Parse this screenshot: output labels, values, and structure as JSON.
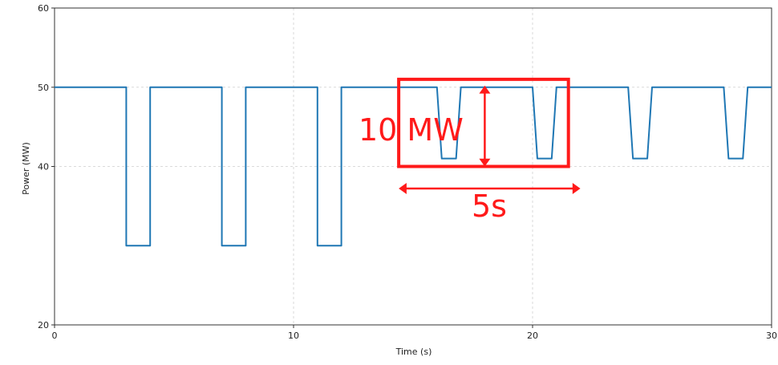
{
  "chart_data": {
    "type": "line",
    "title": "",
    "xlabel": "Time (s)",
    "ylabel": "Power (MW)",
    "xlim": [
      0,
      30
    ],
    "ylim": [
      20,
      60
    ],
    "xticks": [
      0,
      10,
      20,
      30
    ],
    "yticks": [
      20,
      40,
      50,
      60
    ],
    "grid": true,
    "line_color": "#1f77b4",
    "series": [
      {
        "x": [
          0,
          3,
          3,
          4,
          4,
          7,
          7,
          8,
          8,
          11,
          11,
          12,
          12,
          16,
          16.2,
          16.8,
          17.0,
          20,
          20.2,
          20.8,
          21.0,
          24,
          24.2,
          24.8,
          25.0,
          28,
          28.2,
          28.8,
          29.0,
          30
        ],
        "y": [
          50,
          50,
          30,
          30,
          50,
          50,
          30,
          30,
          50,
          50,
          30,
          30,
          50,
          50,
          41,
          41,
          50,
          50,
          41,
          41,
          50,
          50,
          41,
          41,
          50,
          50,
          41,
          41,
          50,
          50
        ]
      }
    ],
    "annotations": [
      {
        "text": "10 MW",
        "color": "#ff1a1a"
      },
      {
        "text": "5s",
        "color": "#ff1a1a"
      }
    ]
  }
}
